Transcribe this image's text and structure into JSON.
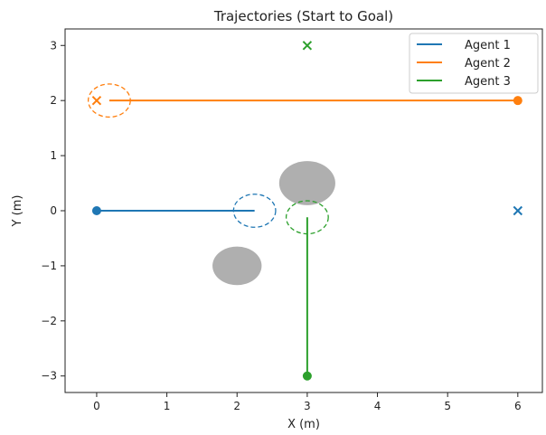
{
  "chart_data": {
    "type": "line",
    "title": "Trajectories (Start to Goal)",
    "xlabel": "X (m)",
    "ylabel": "Y (m)",
    "xlim": [
      -0.45,
      6.35
    ],
    "ylim": [
      -3.3,
      3.3
    ],
    "xticks": [
      0,
      1,
      2,
      3,
      4,
      5,
      6
    ],
    "yticks": [
      -3,
      -2,
      -1,
      0,
      1,
      2,
      3
    ],
    "grid": false,
    "legend_position": "top-right",
    "series": [
      {
        "name": "Agent 1",
        "color": "#1f77b4",
        "x": [
          0,
          2.25
        ],
        "y": [
          0,
          0
        ],
        "start": [
          0,
          0
        ],
        "goal": [
          6,
          0
        ],
        "safety_circle": {
          "center": [
            2.25,
            0
          ],
          "radius": 0.3
        }
      },
      {
        "name": "Agent 2",
        "color": "#ff7f0e",
        "x": [
          6,
          0.18
        ],
        "y": [
          2,
          2
        ],
        "start": [
          6,
          2
        ],
        "goal": [
          0,
          2
        ],
        "safety_circle": {
          "center": [
            0.18,
            2
          ],
          "radius": 0.3
        }
      },
      {
        "name": "Agent 3",
        "color": "#2ca02c",
        "x": [
          3,
          3
        ],
        "y": [
          -3,
          -0.12
        ],
        "start": [
          3,
          -3
        ],
        "goal": [
          3,
          3
        ],
        "safety_circle": {
          "center": [
            3,
            -0.12
          ],
          "radius": 0.3
        }
      }
    ],
    "obstacles": [
      {
        "center": [
          3,
          0.5
        ],
        "radius": 0.4,
        "color": "#a6a6a6"
      },
      {
        "center": [
          2,
          -1
        ],
        "radius": 0.35,
        "color": "#a6a6a6"
      }
    ]
  }
}
